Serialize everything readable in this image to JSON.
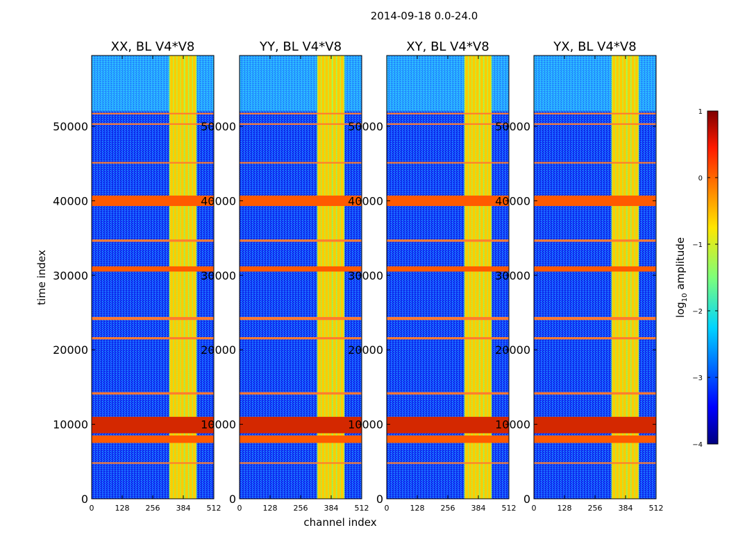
{
  "figure": {
    "suptitle": "2014-09-18 0.0-24.0",
    "xlabel": "channel index",
    "ylabel": "time index"
  },
  "chart_data": {
    "type": "heatmap",
    "x_ticks": [
      0,
      128,
      256,
      384,
      512
    ],
    "y_ticks": [
      0,
      10000,
      20000,
      30000,
      40000,
      50000
    ],
    "xlim": [
      0,
      512
    ],
    "ylim": [
      0,
      59500
    ],
    "panels": [
      {
        "title": "XX, BL V4*V8",
        "baseline": "V4*V8",
        "pol": "XX"
      },
      {
        "title": "YY, BL V4*V8",
        "baseline": "V4*V8",
        "pol": "YY"
      },
      {
        "title": "XY, BL V4*V8",
        "baseline": "V4*V8",
        "pol": "XY"
      },
      {
        "title": "YX, BL V4*V8",
        "baseline": "V4*V8",
        "pol": "YX"
      }
    ],
    "rfi_channel_band": [
      325,
      440
    ],
    "bright_channel_columns": [
      335,
      350,
      365,
      380,
      398,
      415,
      430
    ],
    "flagged_time_bands": [
      [
        7500,
        8500
      ],
      [
        8800,
        11000
      ],
      [
        30500,
        31200
      ],
      [
        39300,
        40700
      ],
      [
        21400,
        21700
      ],
      [
        24000,
        24400
      ],
      [
        34500,
        34800
      ],
      [
        50200,
        50400
      ],
      [
        51600,
        51800
      ],
      [
        45000,
        45200
      ],
      [
        14000,
        14300
      ],
      [
        4700,
        4900
      ]
    ],
    "colorbar": {
      "label_prefix": "log",
      "label_sub": "10",
      "label_suffix": " amplitude",
      "range": [
        -4,
        1
      ],
      "ticks": [
        "1",
        "0",
        "−1",
        "−2",
        "−3",
        "−4"
      ],
      "colormap": "jet"
    }
  }
}
